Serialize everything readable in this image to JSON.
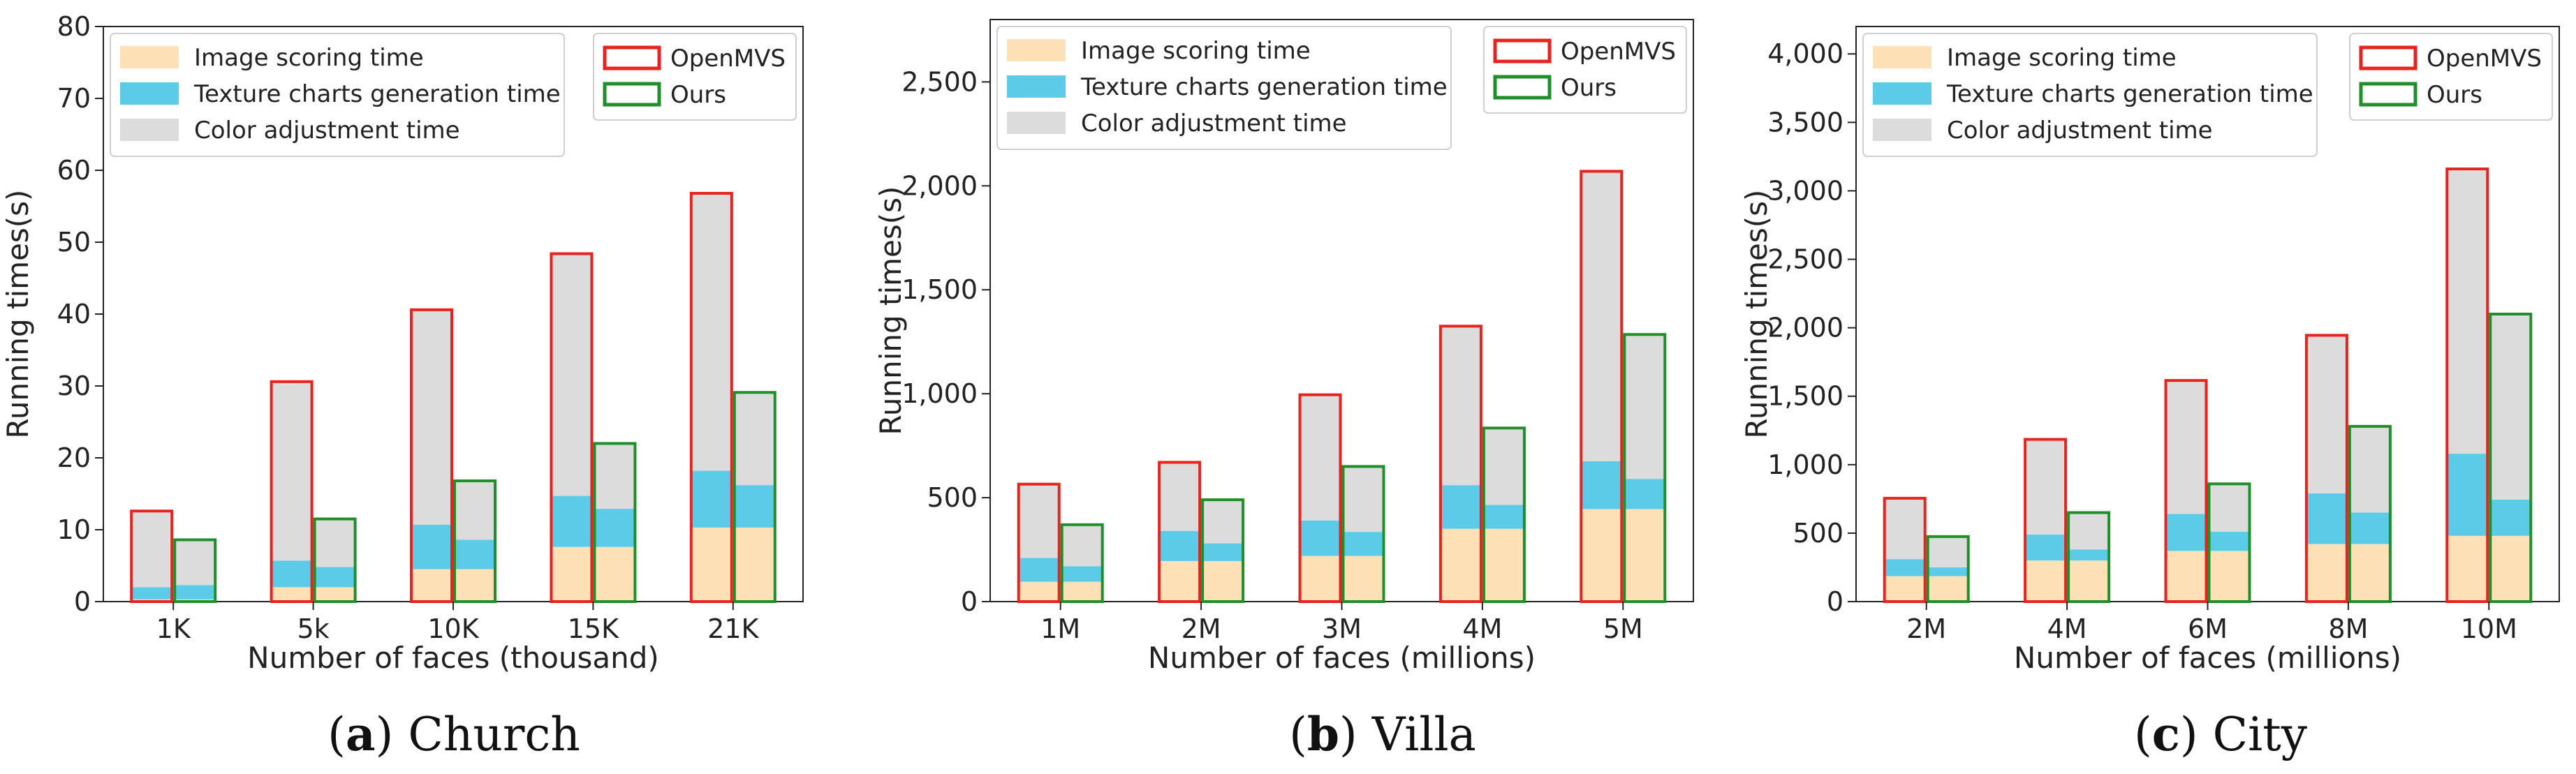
{
  "colors": {
    "image_scoring": "#fde0b6",
    "texture_charts": "#5ccbe8",
    "color_adjustment": "#dcdcdc",
    "openmvs_outline": "#e8231f",
    "ours_outline": "#1f8f2b",
    "axis": "#222222"
  },
  "legend": {
    "image_scoring": "Image scoring time",
    "texture_charts": "Texture charts generation time",
    "color_adjustment": "Color adjustment time",
    "openmvs": "OpenMVS",
    "ours": "Ours"
  },
  "chart_data": [
    {
      "type": "bar",
      "stacked": true,
      "title": "",
      "caption_letter": "a",
      "caption_text": "Church",
      "xlabel": "Number of faces (thousand)",
      "ylabel": "Running times(s)",
      "ylim": [
        0,
        80
      ],
      "yticks": [
        0,
        10,
        20,
        30,
        40,
        50,
        60,
        70,
        80
      ],
      "ytick_labels": [
        "0",
        "10",
        "20",
        "30",
        "40",
        "50",
        "60",
        "70",
        "80"
      ],
      "categories": [
        "1K",
        "5k",
        "10K",
        "15K",
        "21K"
      ],
      "series": [
        {
          "name": "OpenMVS",
          "image_scoring": [
            0.3,
            2.0,
            4.5,
            7.6,
            10.3
          ],
          "texture_charts": [
            1.7,
            3.7,
            6.2,
            7.1,
            7.9
          ],
          "total": [
            12.6,
            30.6,
            40.6,
            48.4,
            56.8
          ]
        },
        {
          "name": "Ours",
          "image_scoring": [
            0.3,
            2.0,
            4.5,
            7.6,
            10.3
          ],
          "texture_charts": [
            2.0,
            2.8,
            4.1,
            5.3,
            5.9
          ],
          "total": [
            8.6,
            11.5,
            16.8,
            22.0,
            29.1
          ]
        }
      ]
    },
    {
      "type": "bar",
      "stacked": true,
      "title": "",
      "caption_letter": "b",
      "caption_text": "Villa",
      "xlabel": "Number of faces (millions)",
      "ylabel": "Running times(s)",
      "ylim": [
        0,
        2800
      ],
      "yticks": [
        0,
        500,
        1000,
        1500,
        2000,
        2500
      ],
      "ytick_labels": [
        "0",
        "500",
        "1,000",
        "1,500",
        "2,000",
        "2,500"
      ],
      "categories": [
        "1M",
        "2M",
        "3M",
        "4M",
        "5M"
      ],
      "series": [
        {
          "name": "OpenMVS",
          "image_scoring": [
            95,
            195,
            220,
            350,
            445
          ],
          "texture_charts": [
            115,
            145,
            170,
            210,
            230
          ],
          "total": [
            565,
            670,
            995,
            1325,
            2070
          ]
        },
        {
          "name": "Ours",
          "image_scoring": [
            95,
            195,
            220,
            350,
            445
          ],
          "texture_charts": [
            75,
            85,
            115,
            115,
            145
          ],
          "total": [
            370,
            490,
            650,
            835,
            1285
          ]
        }
      ]
    },
    {
      "type": "bar",
      "stacked": true,
      "title": "",
      "caption_letter": "c",
      "caption_text": "City",
      "xlabel": "Number of faces (millions)",
      "ylabel": "Running times(s)",
      "ylim": [
        0,
        4200
      ],
      "yticks": [
        0,
        500,
        1000,
        1500,
        2000,
        2500,
        3000,
        3500,
        4000
      ],
      "ytick_labels": [
        "0",
        "500",
        "1,000",
        "1,500",
        "2,000",
        "2,500",
        "3,000",
        "3,500",
        "4,000"
      ],
      "categories": [
        "2M",
        "4M",
        "6M",
        "8M",
        "10M"
      ],
      "series": [
        {
          "name": "OpenMVS",
          "image_scoring": [
            185,
            300,
            370,
            420,
            480
          ],
          "texture_charts": [
            125,
            190,
            270,
            370,
            600
          ],
          "total": [
            755,
            1185,
            1615,
            1945,
            3160
          ]
        },
        {
          "name": "Ours",
          "image_scoring": [
            185,
            300,
            370,
            420,
            480
          ],
          "texture_charts": [
            65,
            80,
            140,
            230,
            265
          ],
          "total": [
            475,
            650,
            860,
            1280,
            2100
          ]
        }
      ]
    }
  ]
}
